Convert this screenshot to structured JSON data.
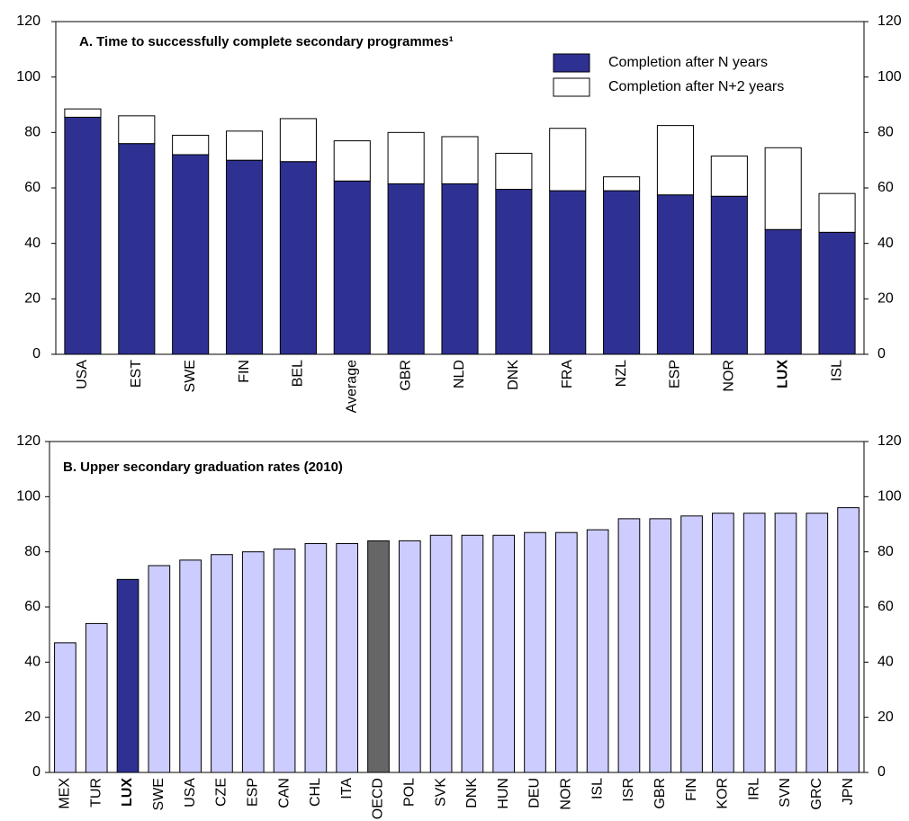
{
  "chart_data": [
    {
      "type": "stacked_bar",
      "title": "A. Time to successfully complete secondary programmes¹",
      "categories": [
        "USA",
        "EST",
        "SWE",
        "FIN",
        "BEL",
        "Average",
        "GBR",
        "NLD",
        "DNK",
        "FRA",
        "NZL",
        "ESP",
        "NOR",
        "LUX",
        "ISL"
      ],
      "bold_category_index": 13,
      "series": [
        {
          "name": "Completion after N years",
          "color": "#2e3192",
          "values": [
            85.5,
            76,
            72,
            70,
            69.5,
            62.5,
            61.5,
            61.5,
            59.5,
            59,
            59,
            57.5,
            57,
            45,
            44
          ]
        },
        {
          "name": "Completion after N+2 years",
          "color": "#ffffff",
          "values": [
            3,
            10,
            7,
            10.5,
            15.5,
            14.5,
            18.5,
            17,
            13,
            22.5,
            5,
            25,
            14.5,
            29.5,
            14
          ]
        }
      ],
      "ylim": [
        0,
        120
      ],
      "yticks": [
        0,
        20,
        40,
        60,
        80,
        100,
        120
      ],
      "legend": "top-right"
    },
    {
      "type": "bar",
      "title": "B. Upper secondary graduation rates (2010)",
      "categories": [
        "MEX",
        "TUR",
        "LUX",
        "SWE",
        "USA",
        "CZE",
        "ESP",
        "CAN",
        "CHL",
        "ITA",
        "OECD",
        "POL",
        "SVK",
        "DNK",
        "HUN",
        "DEU",
        "NOR",
        "ISL",
        "ISR",
        "GBR",
        "FIN",
        "KOR",
        "IRL",
        "SVN",
        "GRC",
        "JPN"
      ],
      "bold_category_index": 2,
      "values": [
        47,
        54,
        70,
        75,
        77,
        79,
        80,
        81,
        83,
        83,
        84,
        84,
        86,
        86,
        86,
        87,
        87,
        88,
        92,
        92,
        93,
        94,
        94,
        94,
        94,
        96
      ],
      "colors": [
        "#ccccff",
        "#ccccff",
        "#2e3192",
        "#ccccff",
        "#ccccff",
        "#ccccff",
        "#ccccff",
        "#ccccff",
        "#ccccff",
        "#ccccff",
        "#666666",
        "#ccccff",
        "#ccccff",
        "#ccccff",
        "#ccccff",
        "#ccccff",
        "#ccccff",
        "#ccccff",
        "#ccccff",
        "#ccccff",
        "#ccccff",
        "#ccccff",
        "#ccccff",
        "#ccccff",
        "#ccccff",
        "#ccccff"
      ],
      "ylim": [
        0,
        120
      ],
      "yticks": [
        0,
        20,
        40,
        60,
        80,
        100,
        120
      ]
    }
  ]
}
